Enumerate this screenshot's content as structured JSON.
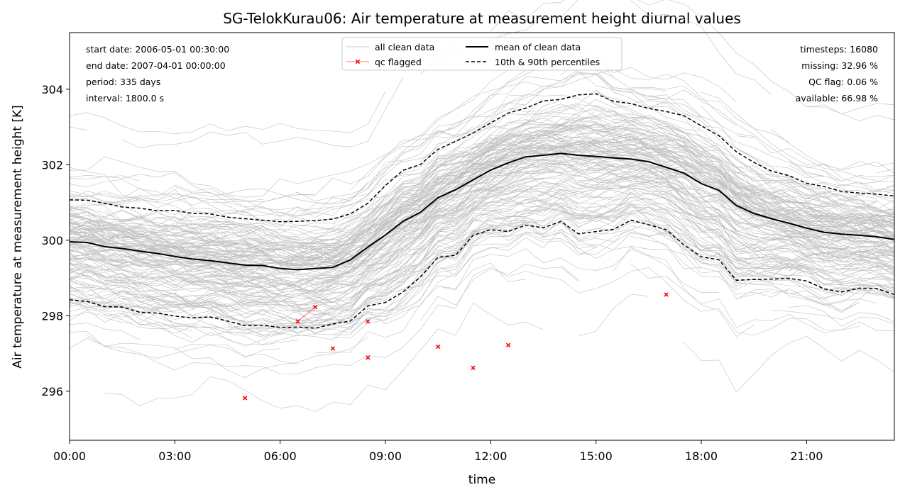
{
  "chart_data": {
    "type": "line",
    "title": "SG-TelokKurau06: Air temperature at measurement height diurnal values",
    "xlabel": "time",
    "ylabel": "Air temperature at measurement height [K]",
    "xlim": [
      0,
      23.5
    ],
    "ylim": [
      294.7,
      305.5
    ],
    "x_ticks": [
      {
        "value": 0,
        "label": "00:00"
      },
      {
        "value": 3,
        "label": "03:00"
      },
      {
        "value": 6,
        "label": "06:00"
      },
      {
        "value": 9,
        "label": "09:00"
      },
      {
        "value": 12,
        "label": "12:00"
      },
      {
        "value": 15,
        "label": "15:00"
      },
      {
        "value": 18,
        "label": "18:00"
      },
      {
        "value": 21,
        "label": "21:00"
      }
    ],
    "y_ticks": [
      {
        "value": 296,
        "label": "296"
      },
      {
        "value": 298,
        "label": "298"
      },
      {
        "value": 300,
        "label": "300"
      },
      {
        "value": 302,
        "label": "302"
      },
      {
        "value": 304,
        "label": "304"
      }
    ],
    "grid": false,
    "info_left": [
      "start date: 2006-05-01 00:30:00",
      "end date: 2007-04-01 00:00:00",
      "period: 335 days",
      "interval: 1800.0 s"
    ],
    "info_right": [
      "timesteps: 16080",
      "missing: 32.96 %",
      "QC flag: 0.06 %",
      "available: 66.98 %"
    ],
    "legend": {
      "position": "top-center",
      "entries": [
        {
          "label": "all clean data",
          "style": "thin-gray"
        },
        {
          "label": "qc flagged",
          "style": "red-x"
        },
        {
          "label": "mean of clean data",
          "style": "black-solid"
        },
        {
          "label": "10th & 90th percentiles",
          "style": "black-dashed"
        }
      ]
    },
    "colors": {
      "clean": "#bfbfbf",
      "mean": "#000000",
      "percentile": "#000000",
      "flagged": "#ff0000"
    },
    "x": [
      0,
      0.5,
      1,
      1.5,
      2,
      2.5,
      3,
      3.5,
      4,
      4.5,
      5,
      5.5,
      6,
      6.5,
      7,
      7.5,
      8,
      8.5,
      9,
      9.5,
      10,
      10.5,
      11,
      11.5,
      12,
      12.5,
      13,
      13.5,
      14,
      14.5,
      15,
      15.5,
      16,
      16.5,
      17,
      17.5,
      18,
      18.5,
      19,
      19.5,
      20,
      20.5,
      21,
      21.5,
      22,
      22.5,
      23,
      23.5
    ],
    "series": [
      {
        "name": "mean of clean data",
        "style": "solid",
        "values": [
          299.96,
          299.94,
          299.83,
          299.78,
          299.71,
          299.65,
          299.57,
          299.5,
          299.46,
          299.4,
          299.34,
          299.33,
          299.25,
          299.22,
          299.25,
          299.28,
          299.48,
          299.82,
          300.14,
          300.5,
          300.74,
          301.13,
          301.34,
          301.6,
          301.86,
          302.05,
          302.21,
          302.25,
          302.3,
          302.25,
          302.22,
          302.18,
          302.15,
          302.08,
          301.93,
          301.78,
          301.5,
          301.32,
          300.92,
          300.71,
          300.57,
          300.45,
          300.32,
          300.21,
          300.16,
          300.13,
          300.09,
          300.02
        ]
      },
      {
        "name": "10th & 90th percentiles",
        "style": "dashed",
        "values": [
          301.07,
          301.06,
          300.98,
          300.88,
          300.85,
          300.78,
          300.79,
          300.71,
          300.7,
          300.61,
          300.57,
          300.53,
          300.49,
          300.5,
          300.52,
          300.56,
          300.7,
          300.98,
          301.45,
          301.85,
          302.01,
          302.41,
          302.62,
          302.84,
          303.11,
          303.37,
          303.5,
          303.69,
          303.73,
          303.85,
          303.88,
          303.68,
          303.62,
          303.49,
          303.41,
          303.3,
          303.03,
          302.77,
          302.34,
          302.06,
          301.83,
          301.71,
          301.51,
          301.42,
          301.29,
          301.25,
          301.22,
          301.17
        ]
      },
      {
        "name": "10th percentile",
        "style": "dashed",
        "values": [
          298.42,
          298.38,
          298.24,
          298.23,
          298.09,
          298.07,
          297.99,
          297.94,
          297.97,
          297.86,
          297.74,
          297.75,
          297.69,
          297.7,
          297.67,
          297.78,
          297.86,
          298.26,
          298.35,
          298.63,
          299.03,
          299.55,
          299.6,
          300.13,
          300.28,
          300.23,
          300.4,
          300.33,
          300.5,
          300.17,
          300.23,
          300.29,
          300.53,
          300.41,
          300.28,
          299.88,
          299.56,
          299.48,
          298.94,
          298.96,
          298.97,
          298.99,
          298.92,
          298.71,
          298.63,
          298.73,
          298.72,
          298.56
        ]
      }
    ],
    "flagged_points": [
      {
        "x": 5,
        "y": 295.82
      },
      {
        "x": 6.5,
        "y": 297.85
      },
      {
        "x": 7,
        "y": 298.23
      },
      {
        "x": 7.5,
        "y": 297.13
      },
      {
        "x": 8.5,
        "y": 297.85
      },
      {
        "x": 8.5,
        "y": 296.89
      },
      {
        "x": 10.5,
        "y": 297.18
      },
      {
        "x": 11.5,
        "y": 296.62
      },
      {
        "x": 12.5,
        "y": 297.22
      },
      {
        "x": 17,
        "y": 298.56
      }
    ]
  }
}
